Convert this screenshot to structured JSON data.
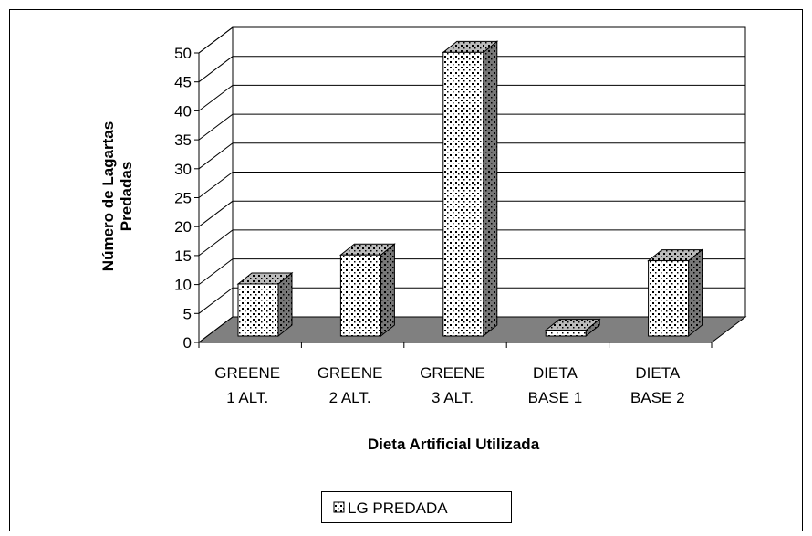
{
  "chart_data": {
    "type": "bar3d",
    "y_label": [
      "Número de Lagartas",
      "Predadas"
    ],
    "x_label": "Dieta Artificial Utilizada",
    "categories": [
      [
        "GREENE",
        "1 ALT."
      ],
      [
        "GREENE",
        "2 ALT."
      ],
      [
        "GREENE",
        "3 ALT."
      ],
      [
        "DIETA",
        "BASE 1"
      ],
      [
        "DIETA",
        "BASE 2"
      ]
    ],
    "series": [
      {
        "name": "LG PREDADA",
        "color": "#ffffff",
        "values": [
          9,
          14,
          49,
          1,
          13
        ]
      }
    ],
    "ylim": [
      0,
      50
    ],
    "yticks": [
      0,
      5,
      10,
      15,
      20,
      25,
      30,
      35,
      40,
      45,
      50
    ],
    "grid": true,
    "legend": "bottom"
  }
}
